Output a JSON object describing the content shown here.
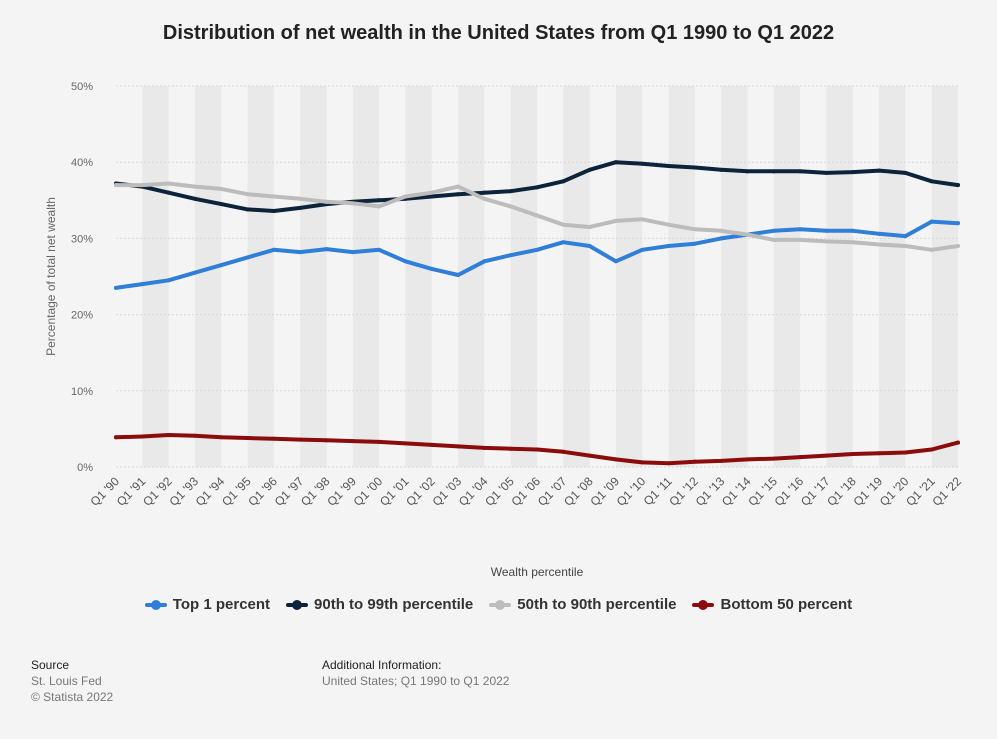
{
  "title": "Distribution of net wealth in the United States from Q1 1990 to Q1 2022",
  "chart_data": {
    "type": "line",
    "xlabel": "Wealth percentile",
    "ylabel": "Percentage of total net wealth",
    "ylim": [
      0,
      50
    ],
    "yticks": [
      "0%",
      "10%",
      "20%",
      "30%",
      "40%",
      "50%"
    ],
    "x_tick_labels": [
      "Q1 '90",
      "Q1 '91",
      "Q1 '92",
      "Q1 '93",
      "Q1 '94",
      "Q1 '95",
      "Q1 '96",
      "Q1 '97",
      "Q1 '98",
      "Q1 '99",
      "Q1 '00",
      "Q1 '01",
      "Q1 '02",
      "Q1 '03",
      "Q1 '04",
      "Q1 '05",
      "Q1 '06",
      "Q1 '07",
      "Q1 '08",
      "Q1 '09",
      "Q1 '10",
      "Q1 '11",
      "Q1 '12",
      "Q1 '13",
      "Q1 '14",
      "Q1 '15",
      "Q1 '16",
      "Q1 '17",
      "Q1 '18",
      "Q1 '19",
      "Q1 '20",
      "Q1 '21",
      "Q1 '22"
    ],
    "x_start": "Q1 1990",
    "x_end": "Q1 2022",
    "grid": true,
    "legend_position": "bottom",
    "series": [
      {
        "name": "Top 1 percent",
        "color": "#2f7ed8",
        "values": [
          23.5,
          24.0,
          24.5,
          25.5,
          26.5,
          27.5,
          28.5,
          28.2,
          28.6,
          28.2,
          28.5,
          27.0,
          26.0,
          25.2,
          27.0,
          27.8,
          28.5,
          29.5,
          29.0,
          27.0,
          28.5,
          29.0,
          29.3,
          30.0,
          30.5,
          31.0,
          31.2,
          31.0,
          31.0,
          30.6,
          30.3,
          32.2,
          32.0
        ]
      },
      {
        "name": "90th to 99th percentile",
        "color": "#0d233a",
        "values": [
          37.2,
          36.8,
          36.0,
          35.2,
          34.5,
          33.8,
          33.6,
          34.0,
          34.5,
          34.8,
          35.0,
          35.2,
          35.5,
          35.8,
          36.0,
          36.2,
          36.7,
          37.5,
          39.0,
          40.0,
          39.8,
          39.5,
          39.3,
          39.0,
          38.8,
          38.8,
          38.8,
          38.6,
          38.7,
          38.9,
          38.6,
          37.5,
          37.0
        ]
      },
      {
        "name": "50th to 90th percentile",
        "color": "#bcbcbc",
        "values": [
          37.0,
          37.0,
          37.2,
          36.8,
          36.5,
          35.8,
          35.5,
          35.2,
          34.8,
          34.6,
          34.2,
          35.5,
          36.0,
          36.8,
          35.2,
          34.2,
          33.0,
          31.8,
          31.5,
          32.3,
          32.5,
          31.8,
          31.2,
          31.0,
          30.5,
          29.8,
          29.8,
          29.6,
          29.5,
          29.2,
          29.0,
          28.5,
          29.0
        ]
      },
      {
        "name": "Bottom 50 percent",
        "color": "#8b0c0c",
        "values": [
          3.9,
          4.0,
          4.2,
          4.1,
          3.9,
          3.8,
          3.7,
          3.6,
          3.5,
          3.4,
          3.3,
          3.1,
          2.9,
          2.7,
          2.5,
          2.4,
          2.3,
          2.0,
          1.5,
          1.0,
          0.6,
          0.5,
          0.7,
          0.8,
          1.0,
          1.1,
          1.3,
          1.5,
          1.7,
          1.8,
          1.9,
          2.3,
          3.2
        ]
      }
    ]
  },
  "source": {
    "heading": "Source",
    "line1": "St. Louis Fed",
    "line2": "© Statista 2022"
  },
  "additional": {
    "heading": "Additional Information:",
    "text": "United States; Q1 1990 to Q1 2022"
  }
}
